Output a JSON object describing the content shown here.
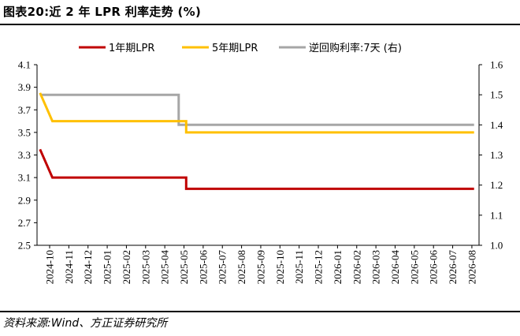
{
  "figure": {
    "title": "图表20:近 2 年 LPR 利率走势 (%)",
    "source": "资料来源:Wind、方正证券研究所"
  },
  "chart_data": {
    "type": "line",
    "title": "近 2 年 LPR 利率走势 (%)",
    "x": [
      "2024-10",
      "2024-11",
      "2024-12",
      "2025-01",
      "2025-02",
      "2025-03",
      "2025-04",
      "2025-05",
      "2025-06",
      "2025-07",
      "2025-08",
      "2025-09",
      "2025-10",
      "2025-11",
      "2025-12",
      "2026-01",
      "2026-02",
      "2026-03",
      "2026-04",
      "2026-05",
      "2026-06",
      "2026-07",
      "2026-08"
    ],
    "left_axis": {
      "ylim": [
        2.5,
        4.1
      ],
      "ticks": [
        "2.5",
        "2.7",
        "2.9",
        "3.1",
        "3.3",
        "3.5",
        "3.7",
        "3.9",
        "4.1"
      ]
    },
    "right_axis": {
      "ylim": [
        1.0,
        1.6
      ],
      "ticks": [
        "1.0",
        "1.1",
        "1.2",
        "1.3",
        "1.4",
        "1.5",
        "1.6"
      ]
    },
    "legend_position": "top",
    "grid": false,
    "series": [
      {
        "name": "1年期LPR",
        "color": "#c00000",
        "axis": "left",
        "points": [
          [
            "2024-10-01",
            3.35
          ],
          [
            "2024-10-21",
            3.1
          ],
          [
            "2025-05-20",
            3.1
          ],
          [
            "2025-05-20",
            3.0
          ],
          [
            "2026-08-20",
            3.0
          ]
        ]
      },
      {
        "name": "5年期LPR",
        "color": "#ffc000",
        "axis": "left",
        "points": [
          [
            "2024-10-01",
            3.85
          ],
          [
            "2024-10-21",
            3.6
          ],
          [
            "2025-05-20",
            3.6
          ],
          [
            "2025-05-20",
            3.5
          ],
          [
            "2026-08-20",
            3.5
          ]
        ]
      },
      {
        "name": "逆回购利率:7天 (右)",
        "color": "#a6a6a6",
        "axis": "right",
        "points": [
          [
            "2024-10-01",
            1.5
          ],
          [
            "2025-05-08",
            1.5
          ],
          [
            "2025-05-08",
            1.4
          ],
          [
            "2026-08-20",
            1.4
          ]
        ]
      }
    ]
  }
}
